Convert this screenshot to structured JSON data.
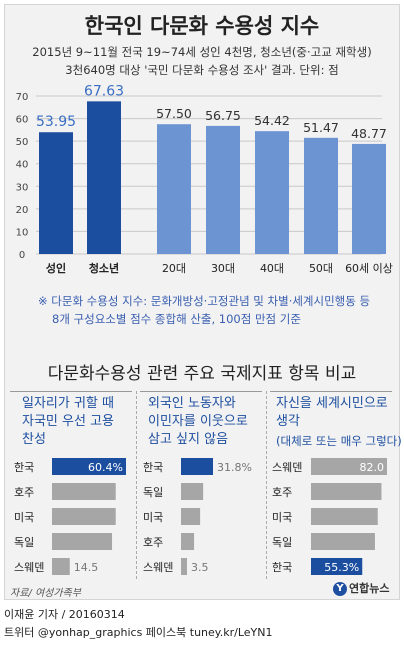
{
  "title": "한국인 다문화 수용성 지수",
  "subtitle_1": "2015년 9~11월 전국 19~74세 성인 4천명, 청소년(중·고교 재학생)",
  "subtitle_2": "3천640명 대상 '국민 다문화 수용성 조사' 결과. 단위: 점",
  "note_1": "※ 다문화 수용성 지수: 문화개방성·고정관념 및 차별·세계시민행동 등",
  "note_2": "8개 구성요소별 점수 종합해 산출, 100점 만점 기준",
  "section2_title": "다문화수용성 관련 주요 국제지표 항목 비교",
  "panels": [
    {
      "title_lines": [
        "일자리가 귀할 때",
        "자국민 우선 고용",
        "찬성"
      ],
      "subnote": ""
    },
    {
      "title_lines": [
        "외국인 노동자와",
        "이민자를 이웃으로",
        "삼고 싶지 않음"
      ],
      "subnote": ""
    },
    {
      "title_lines": [
        "자신을 세계시민으로",
        "생각"
      ],
      "subnote": "(대체로 또는 매우 그렇다)"
    }
  ],
  "source": "자료/ 여성가족부",
  "logo": "연합뉴스",
  "logo_mark": "Y",
  "credit": "이재윤 기자 / 20160314",
  "social": "트위터 @yonhap_graphics  페이스북 tuney.kr/LeYN1",
  "colors": {
    "dark_blue": "#1c4ea0",
    "light_blue": "#6c94d2",
    "gray": "#a6a6a6",
    "label_blue": "#3a6fc4"
  },
  "chart_data": [
    {
      "type": "bar",
      "categories": [
        "성인",
        "청소년",
        "20대",
        "30대",
        "40대",
        "50대",
        "60세 이상"
      ],
      "values": [
        53.95,
        67.63,
        57.5,
        56.75,
        54.42,
        51.47,
        48.77
      ],
      "value_labels": [
        "53.95",
        "67.63",
        "57.50",
        "56.75",
        "54.42",
        "51.47",
        "48.77"
      ],
      "ylim": [
        0,
        70
      ],
      "yticks": [
        "0",
        "10",
        "20",
        "30",
        "40",
        "50",
        "60",
        "70"
      ],
      "grid": true
    },
    {
      "type": "bar",
      "orientation": "horizontal",
      "categories": [
        "한국",
        "호주",
        "미국",
        "독일",
        "스웨덴"
      ],
      "values": [
        60.4,
        52,
        52,
        49,
        14.5
      ],
      "value_labels": [
        "60.4%",
        "",
        "",
        "",
        "14.5"
      ],
      "highlight": "한국"
    },
    {
      "type": "bar",
      "orientation": "horizontal",
      "categories": [
        "한국",
        "독일",
        "미국",
        "호주",
        "스웨덴"
      ],
      "values": [
        31.8,
        22,
        19,
        13,
        3.5
      ],
      "value_labels": [
        "31.8%",
        "",
        "",
        "",
        "3.5"
      ],
      "highlight": "한국"
    },
    {
      "type": "bar",
      "orientation": "horizontal",
      "categories": [
        "스웨덴",
        "호주",
        "미국",
        "독일",
        "한국"
      ],
      "values": [
        82.0,
        76,
        72,
        69,
        55.3
      ],
      "value_labels": [
        "82.0",
        "",
        "",
        "",
        "55.3%"
      ],
      "highlight": "한국"
    }
  ]
}
